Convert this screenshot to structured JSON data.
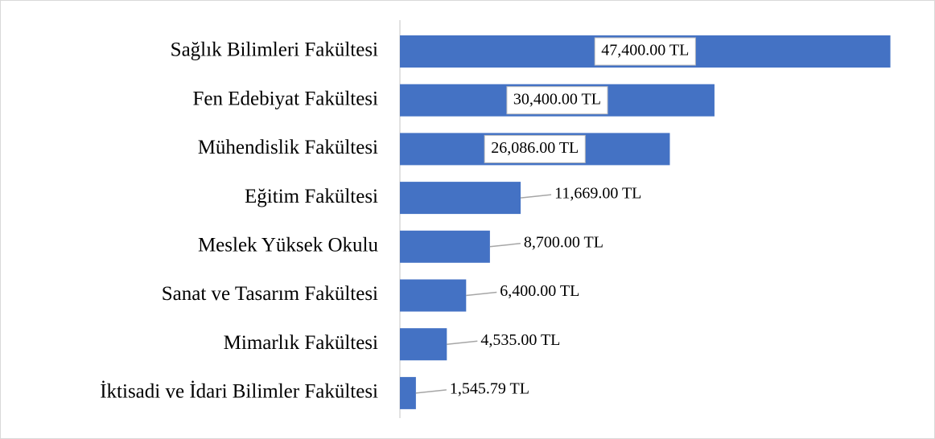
{
  "chart_data": {
    "type": "bar",
    "orientation": "horizontal",
    "categories": [
      "Sağlık Bilimleri Fakültesi",
      "Fen Edebiyat Fakültesi",
      "Mühendislik Fakültesi",
      "Eğitim Fakültesi",
      "Meslek Yüksek Okulu",
      "Sanat ve Tasarım Fakültesi",
      "Mimarlık Fakültesi",
      "İktisadi ve İdari Bilimler Fakültesi"
    ],
    "values": [
      47400,
      30400,
      26086,
      11669,
      8700,
      6400,
      4535,
      1545.79
    ],
    "value_labels": [
      "47,400.00 TL",
      "30,400.00 TL",
      "26,086.00 TL",
      "11,669.00 TL",
      "8,700.00 TL",
      "6,400.00 TL",
      "4,535.00 TL",
      "1,545.79 TL"
    ],
    "color": "#4472c4",
    "xlim": [
      0,
      50000
    ],
    "grid": false
  }
}
